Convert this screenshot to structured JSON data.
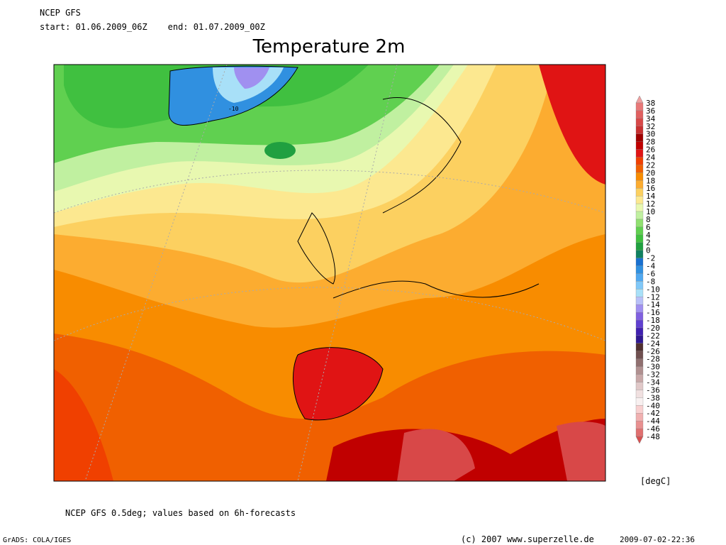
{
  "header": {
    "model": "NCEP GFS",
    "period": "start: 01.06.2009_06Z    end: 01.07.2009_00Z",
    "title": "Temperature 2m"
  },
  "map": {
    "contour_label": "-10"
  },
  "colorbar": {
    "levels": [
      38,
      36,
      34,
      32,
      30,
      28,
      26,
      24,
      22,
      20,
      18,
      16,
      14,
      12,
      10,
      8,
      6,
      4,
      2,
      0,
      -2,
      -4,
      -6,
      -8,
      -10,
      -12,
      -14,
      -16,
      -18,
      -20,
      -22,
      -24,
      -26,
      -28,
      -30,
      -32,
      -34,
      -36,
      -38,
      -40,
      -42,
      -44,
      -46,
      -48
    ],
    "colors": [
      "#e87878",
      "#e06060",
      "#d84848",
      "#c83030",
      "#a00000",
      "#c00000",
      "#e01414",
      "#f04000",
      "#f06000",
      "#f88c00",
      "#fcac30",
      "#fcd060",
      "#fce890",
      "#e8f8b0",
      "#c0f0a0",
      "#90e070",
      "#60d050",
      "#40c040",
      "#20a040",
      "#108060",
      "#1870d0",
      "#3090e0",
      "#50a8f0",
      "#80c8f8",
      "#a8e0f8",
      "#b8c0f8",
      "#a090f0",
      "#8060e0",
      "#6040d0",
      "#4020b0",
      "#301890",
      "#503030",
      "#705050",
      "#907070",
      "#b09090",
      "#c8a8a8",
      "#e0c8c8",
      "#f0e0e0",
      "#f8f0f0",
      "#f8d0d0",
      "#f0b0b0",
      "#e89090",
      "#e07070",
      "#d85050"
    ],
    "top_color": "#f0a0a0",
    "unit": "[degC]"
  },
  "footer": {
    "note": "NCEP GFS 0.5deg; values based on 6h-forecasts",
    "software": "GrADS: COLA/IGES",
    "copyright": "(c) 2007 www.superzelle.de",
    "timestamp": "2009-07-02-22:36"
  }
}
